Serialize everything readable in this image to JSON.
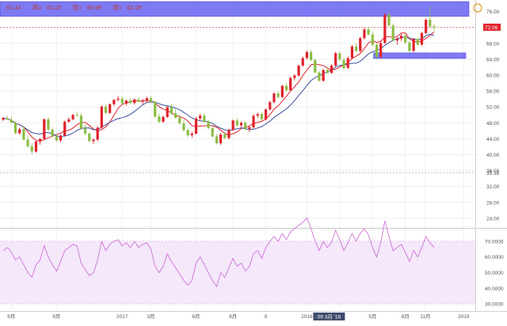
{
  "ohlc": {
    "open": "61.43",
    "high": "63.25",
    "low": "59.99",
    "close": "62.09",
    "prefix_open": "",
    "prefix_high": "高=",
    "prefix_low": "低=",
    "prefix_close": "收="
  },
  "price_axis": {
    "ticks": [
      "76.00",
      "72.00",
      "68.00",
      "64.00",
      "60.00",
      "56.00",
      "52.00",
      "48.00",
      "44.00",
      "40.00",
      "36.00",
      "32.00",
      "28.00",
      "24.00"
    ],
    "last_price_label": "72.06",
    "marker_label": "35.38"
  },
  "rsi_axis": {
    "ticks": [
      "70.0000",
      "60.0000",
      "50.0000",
      "40.0000",
      "30.0000"
    ]
  },
  "time_axis": {
    "ticks": [
      "6月",
      "9月",
      "2017",
      "3月",
      "6月",
      "8月",
      "9",
      "2018",
      "3月",
      "5月",
      "8月",
      "11月",
      "2019"
    ],
    "crosshair_label": "09 3月 '18"
  },
  "colors": {
    "up": "#e0212b",
    "down": "#8bbd45",
    "ma_fast": "#e0212b",
    "ma_slow": "#3a4f9e",
    "zone": "#6f6cf2",
    "rsi": "#d070d6",
    "rsi_band": "#f4e8fa"
  },
  "chart_data": {
    "type": "candlestick",
    "price_range": [
      22,
      78.5
    ],
    "rsi_range": [
      27,
      77
    ],
    "zones": [
      {
        "from": 74.8,
        "to": 78.5,
        "x_start": 0,
        "x_end": 1.0
      },
      {
        "from": 64.2,
        "to": 65.6,
        "x_start": 0.786,
        "x_end": 1.0
      }
    ],
    "reference_lines": [
      72.06,
      35.38
    ],
    "candles": [
      [
        48.8,
        49.5,
        48.4,
        49.2
      ],
      [
        49.2,
        49.8,
        48.9,
        48.8
      ],
      [
        48.8,
        49.6,
        48.1,
        48.0
      ],
      [
        48.0,
        48.5,
        45.1,
        45.4
      ],
      [
        45.4,
        46.8,
        45.0,
        46.4
      ],
      [
        46.4,
        47.2,
        43.6,
        43.8
      ],
      [
        43.8,
        44.6,
        41.8,
        42.1
      ],
      [
        42.1,
        42.9,
        40.1,
        40.8
      ],
      [
        40.8,
        43.5,
        40.5,
        43.3
      ],
      [
        43.3,
        44.1,
        42.5,
        44.0
      ],
      [
        44.0,
        49.2,
        43.7,
        48.9
      ],
      [
        48.9,
        49.4,
        46.0,
        46.3
      ],
      [
        46.3,
        46.9,
        44.4,
        44.6
      ],
      [
        44.6,
        45.3,
        43.3,
        43.6
      ],
      [
        43.6,
        45.1,
        43.1,
        44.8
      ],
      [
        44.8,
        48.6,
        44.5,
        48.3
      ],
      [
        48.3,
        49.4,
        48.0,
        48.9
      ],
      [
        48.9,
        50.3,
        48.6,
        50.0
      ],
      [
        50.0,
        50.8,
        49.6,
        49.8
      ],
      [
        49.8,
        50.4,
        46.3,
        46.6
      ],
      [
        46.6,
        47.6,
        45.0,
        45.3
      ],
      [
        45.3,
        45.6,
        43.2,
        43.4
      ],
      [
        43.4,
        44.1,
        42.7,
        43.8
      ],
      [
        43.8,
        47.2,
        43.4,
        46.8
      ],
      [
        46.8,
        52.4,
        46.5,
        52.1
      ],
      [
        52.1,
        52.6,
        50.2,
        50.5
      ],
      [
        50.5,
        52.9,
        50.2,
        52.7
      ],
      [
        52.7,
        54.0,
        52.3,
        53.8
      ],
      [
        53.8,
        54.8,
        53.3,
        54.1
      ],
      [
        54.1,
        54.6,
        52.4,
        52.9
      ],
      [
        52.9,
        53.8,
        52.3,
        53.6
      ],
      [
        53.6,
        54.2,
        52.8,
        53.0
      ],
      [
        53.0,
        54.2,
        52.6,
        53.9
      ],
      [
        53.9,
        54.5,
        53.2,
        53.4
      ],
      [
        53.4,
        54.0,
        52.6,
        53.7
      ],
      [
        53.7,
        54.6,
        53.1,
        54.2
      ],
      [
        54.2,
        54.7,
        53.0,
        53.3
      ],
      [
        53.3,
        53.6,
        49.2,
        49.6
      ],
      [
        49.6,
        50.4,
        47.9,
        48.3
      ],
      [
        48.3,
        49.8,
        48.0,
        49.5
      ],
      [
        49.5,
        52.3,
        49.2,
        52.0
      ],
      [
        52.0,
        52.8,
        50.1,
        50.4
      ],
      [
        50.4,
        51.4,
        49.1,
        49.3
      ],
      [
        49.3,
        50.1,
        47.6,
        47.9
      ],
      [
        47.9,
        48.6,
        45.8,
        46.2
      ],
      [
        46.2,
        46.6,
        44.5,
        44.9
      ],
      [
        44.9,
        45.8,
        44.3,
        45.3
      ],
      [
        45.3,
        49.5,
        45.1,
        49.1
      ],
      [
        49.1,
        50.3,
        48.6,
        49.8
      ],
      [
        49.8,
        50.4,
        48.0,
        48.3
      ],
      [
        48.3,
        48.8,
        46.4,
        46.7
      ],
      [
        46.7,
        47.2,
        44.3,
        44.6
      ],
      [
        44.6,
        45.2,
        42.6,
        42.9
      ],
      [
        42.9,
        45.5,
        42.5,
        45.1
      ],
      [
        45.1,
        45.7,
        43.9,
        44.2
      ],
      [
        44.2,
        46.6,
        43.8,
        46.2
      ],
      [
        46.2,
        48.9,
        45.9,
        48.6
      ],
      [
        48.6,
        49.3,
        47.1,
        47.4
      ],
      [
        47.4,
        48.3,
        46.9,
        48.0
      ],
      [
        48.0,
        48.4,
        46.2,
        46.5
      ],
      [
        46.5,
        47.1,
        45.6,
        46.9
      ],
      [
        46.9,
        50.2,
        46.6,
        49.8
      ],
      [
        49.8,
        50.6,
        49.2,
        50.2
      ],
      [
        50.2,
        50.6,
        48.6,
        48.9
      ],
      [
        48.9,
        51.6,
        48.6,
        51.4
      ],
      [
        51.4,
        53.6,
        51.1,
        53.2
      ],
      [
        53.2,
        55.7,
        52.9,
        55.4
      ],
      [
        55.4,
        56.0,
        54.1,
        54.5
      ],
      [
        54.5,
        57.6,
        54.2,
        57.3
      ],
      [
        57.3,
        57.9,
        55.9,
        56.2
      ],
      [
        56.2,
        59.6,
        55.9,
        59.3
      ],
      [
        59.3,
        60.3,
        58.6,
        59.9
      ],
      [
        59.9,
        62.7,
        59.5,
        62.4
      ],
      [
        62.4,
        64.7,
        62.1,
        64.3
      ],
      [
        64.3,
        66.2,
        63.9,
        65.8
      ],
      [
        65.8,
        66.3,
        63.5,
        63.8
      ],
      [
        63.8,
        64.2,
        60.4,
        60.7
      ],
      [
        60.7,
        61.1,
        58.3,
        58.6
      ],
      [
        58.6,
        61.6,
        58.3,
        61.3
      ],
      [
        61.3,
        62.0,
        60.3,
        60.6
      ],
      [
        60.6,
        62.8,
        60.3,
        62.4
      ],
      [
        62.4,
        65.9,
        62.1,
        65.5
      ],
      [
        65.5,
        66.0,
        63.6,
        63.9
      ],
      [
        63.9,
        64.3,
        61.4,
        61.8
      ],
      [
        61.8,
        64.7,
        61.5,
        64.3
      ],
      [
        64.3,
        67.6,
        64.0,
        67.2
      ],
      [
        67.2,
        68.0,
        65.8,
        66.1
      ],
      [
        66.1,
        69.7,
        65.8,
        69.3
      ],
      [
        69.3,
        71.9,
        69.0,
        71.5
      ],
      [
        71.5,
        72.1,
        69.9,
        70.2
      ],
      [
        70.2,
        70.9,
        67.3,
        67.6
      ],
      [
        67.6,
        68.0,
        64.4,
        64.6
      ],
      [
        64.6,
        68.4,
        64.3,
        68.1
      ],
      [
        68.1,
        75.6,
        67.8,
        75.2
      ],
      [
        75.2,
        75.9,
        72.2,
        72.5
      ],
      [
        72.5,
        73.0,
        68.4,
        68.7
      ],
      [
        68.7,
        69.5,
        67.6,
        69.2
      ],
      [
        69.2,
        70.4,
        68.6,
        69.9
      ],
      [
        69.9,
        70.4,
        67.9,
        68.2
      ],
      [
        68.2,
        68.6,
        65.8,
        66.1
      ],
      [
        66.1,
        69.4,
        65.8,
        69.1
      ],
      [
        69.1,
        69.6,
        67.4,
        67.7
      ],
      [
        67.7,
        70.9,
        67.4,
        70.6
      ],
      [
        70.6,
        74.2,
        70.3,
        73.9
      ],
      [
        73.9,
        77.3,
        71.8,
        72.3
      ],
      [
        72.3,
        72.8,
        71.2,
        72.06
      ]
    ],
    "rsi": [
      64,
      66,
      63,
      58,
      60,
      55,
      50,
      47,
      55,
      58,
      67,
      60,
      55,
      51,
      57,
      64,
      66,
      68,
      67,
      56,
      52,
      48,
      50,
      58,
      70,
      64,
      68,
      70,
      71,
      67,
      69,
      66,
      70,
      66,
      68,
      69,
      65,
      54,
      50,
      54,
      62,
      57,
      53,
      49,
      45,
      42,
      45,
      56,
      60,
      55,
      50,
      45,
      41,
      50,
      47,
      53,
      59,
      54,
      56,
      51,
      54,
      62,
      64,
      59,
      66,
      70,
      73,
      70,
      75,
      71,
      76,
      78,
      80,
      82,
      85,
      78,
      70,
      64,
      70,
      66,
      69,
      77,
      71,
      64,
      69,
      75,
      70,
      75,
      78,
      74,
      66,
      60,
      69,
      83,
      73,
      64,
      66,
      68,
      63,
      57,
      64,
      60,
      66,
      73,
      69,
      66
    ]
  }
}
